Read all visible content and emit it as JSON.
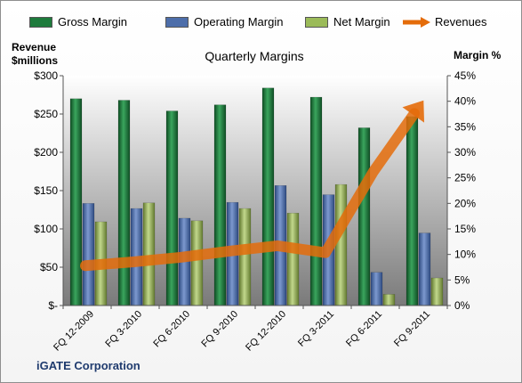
{
  "legend": {
    "gross": "Gross Margin",
    "operating": "Operating Margin",
    "net": "Net Margin",
    "revenues": "Revenues"
  },
  "labels": {
    "left_axis_line1": "Revenue",
    "left_axis_line2": "$millions",
    "right_axis": "Margin %",
    "company": "iGATE Corporation"
  },
  "colors": {
    "gross": "#1e7b3c",
    "operating": "#4d6eaa",
    "net": "#9bbb59",
    "revenues": "#e46c0a"
  },
  "chart_data": {
    "type": "bar",
    "title": "Quarterly Margins",
    "categories": [
      "FQ 12-2009",
      "FQ 3-2010",
      "FQ 6-2010",
      "FQ 9-2010",
      "FQ 12-2010",
      "FQ 3-2011",
      "FQ 6-2011",
      "FQ 9-2011"
    ],
    "series": [
      {
        "name": "Gross Margin",
        "axis": "right",
        "values": [
          40.5,
          40.2,
          38.1,
          39.3,
          42.6,
          40.8,
          34.8,
          37.0
        ]
      },
      {
        "name": "Operating Margin",
        "axis": "right",
        "values": [
          20.0,
          19.0,
          17.1,
          20.2,
          23.5,
          21.7,
          6.5,
          14.2
        ]
      },
      {
        "name": "Net Margin",
        "axis": "right",
        "values": [
          16.4,
          20.1,
          16.6,
          19.0,
          18.1,
          23.7,
          2.2,
          5.4
        ]
      },
      {
        "name": "Revenues",
        "type": "line",
        "axis": "left",
        "values": [
          52,
          57,
          63,
          71,
          78,
          69,
          175,
          264
        ]
      }
    ],
    "ylabel": "Revenue $millions",
    "y2label": "Margin %",
    "ylim": [
      0,
      300
    ],
    "y2lim": [
      0,
      45
    ],
    "yticks": [
      "$-",
      "$50",
      "$100",
      "$150",
      "$200",
      "$250",
      "$300"
    ],
    "y2ticks": [
      "0%",
      "5%",
      "10%",
      "15%",
      "20%",
      "25%",
      "30%",
      "35%",
      "40%",
      "45%"
    ],
    "legend_position": "top",
    "grid": false
  }
}
